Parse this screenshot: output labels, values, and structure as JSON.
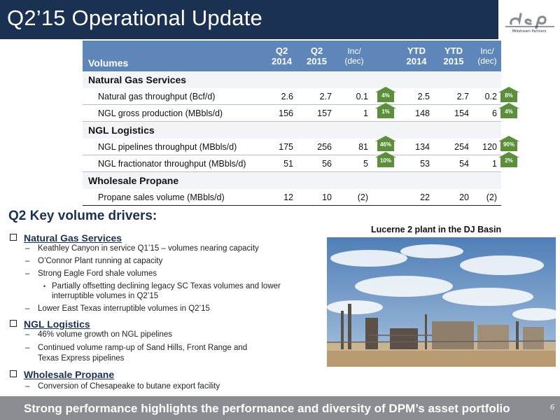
{
  "header": {
    "title": "Q2’15 Operational Update",
    "logo_text": "dcp"
  },
  "table": {
    "label": "Volumes",
    "columns": [
      {
        "line1": "Q2",
        "line2": "2014"
      },
      {
        "line1": "Q2",
        "line2": "2015"
      },
      {
        "line1": "Inc/",
        "line2": "(dec)"
      },
      {
        "line1": "YTD",
        "line2": "2014"
      },
      {
        "line1": "YTD",
        "line2": "2015"
      },
      {
        "line1": "Inc/",
        "line2": "(dec)"
      }
    ],
    "sections": [
      {
        "name": "Natural Gas Services",
        "rows": [
          {
            "label": "Natural gas throughput (Bcf/d)",
            "q2_2014": "2.6",
            "q2_2015": "2.7",
            "q2_inc": "0.1",
            "q2_pct": "4%",
            "ytd_2014": "2.5",
            "ytd_2015": "2.7",
            "ytd_inc": "0.2",
            "ytd_pct": "8%"
          },
          {
            "label": "NGL gross production (MBbls/d)",
            "q2_2014": "156",
            "q2_2015": "157",
            "q2_inc": "1",
            "q2_pct": "1%",
            "ytd_2014": "148",
            "ytd_2015": "154",
            "ytd_inc": "6",
            "ytd_pct": "4%"
          }
        ]
      },
      {
        "name": "NGL Logistics",
        "rows": [
          {
            "label": "NGL pipelines throughput (MBbls/d)",
            "q2_2014": "175",
            "q2_2015": "256",
            "q2_inc": "81",
            "q2_pct": "46%",
            "ytd_2014": "134",
            "ytd_2015": "254",
            "ytd_inc": "120",
            "ytd_pct": "90%"
          },
          {
            "label": "NGL fractionator throughput (MBbls/d)",
            "q2_2014": "51",
            "q2_2015": "56",
            "q2_inc": "5",
            "q2_pct": "10%",
            "ytd_2014": "53",
            "ytd_2015": "54",
            "ytd_inc": "1",
            "ytd_pct": "2%"
          }
        ]
      },
      {
        "name": "Wholesale Propane",
        "rows": [
          {
            "label": "Propane sales volume (MBbls/d)",
            "q2_2014": "12",
            "q2_2015": "10",
            "q2_inc": "(2)",
            "q2_pct": "",
            "ytd_2014": "22",
            "ytd_2015": "20",
            "ytd_inc": "(2)",
            "ytd_pct": ""
          }
        ]
      }
    ]
  },
  "drivers": {
    "title": "Q2 Key volume drivers:",
    "groups": [
      {
        "heading": "Natural Gas Services",
        "items": [
          "Keathley Canyon in service Q1’15 – volumes nearing capacity",
          "O’Connor Plant running at capacity",
          "Strong Eagle Ford shale volumes",
          "Partially offsetting declining legacy SC Texas volumes and lower",
          "interruptible volumes  in Q2’15",
          "Lower East Texas interruptible volumes in Q2’15"
        ]
      },
      {
        "heading": "NGL Logistics",
        "items": [
          "46% volume growth on NGL pipelines",
          "Continued volume ramp-up of Sand Hills, Front Range and",
          "Texas Express pipelines"
        ]
      },
      {
        "heading": "Wholesale Propane",
        "items": [
          "Conversion of Chesapeake to butane export facility"
        ]
      }
    ]
  },
  "photo": {
    "caption": "Lucerne 2 plant in the DJ Basin"
  },
  "footer": {
    "text": "Strong performance highlights the performance and diversity of DPM’s asset portfolio",
    "page": "6"
  },
  "colors": {
    "navy": "#1b3152",
    "table_header": "#5f86b8",
    "badge_green": "#5c8f3a",
    "footer_gray": "#8a8d91"
  }
}
